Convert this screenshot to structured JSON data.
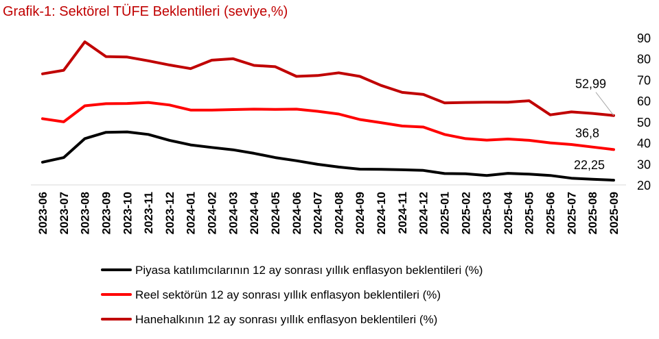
{
  "chart_data": {
    "type": "line",
    "title": "Grafik-1: Sektörel TÜFE Beklentileri (seviye,%)",
    "x": [
      "2023-06",
      "2023-07",
      "2023-08",
      "2023-09",
      "2023-10",
      "2023-11",
      "2023-12",
      "2024-01",
      "2024-02",
      "2024-03",
      "2024-04",
      "2024-05",
      "2024-06",
      "2024-07",
      "2024-08",
      "2024-09",
      "2024-10",
      "2024-11",
      "2024-12",
      "2025-01",
      "2025-02",
      "2025-03",
      "2025-04",
      "2025-05",
      "2025-06",
      "2025-07",
      "2025-08",
      "2025-09"
    ],
    "ylim": [
      20,
      90
    ],
    "yticks": [
      20,
      30,
      40,
      50,
      60,
      70,
      80,
      90
    ],
    "y_axis_side": "right",
    "legend_placement": "bottom",
    "series": [
      {
        "name": "Piyasa katılımcılarının 12 ay sonrası yıllık enflasyon beklentileri (%)",
        "color": "#000000",
        "values": [
          30.8,
          33.0,
          42.0,
          45.0,
          45.2,
          44.0,
          41.2,
          39.0,
          37.8,
          36.7,
          35.0,
          33.0,
          31.5,
          29.8,
          28.5,
          27.5,
          27.4,
          27.2,
          26.9,
          25.4,
          25.3,
          24.5,
          25.5,
          25.1,
          24.5,
          23.2,
          22.7,
          22.25
        ],
        "end_label": "22,25"
      },
      {
        "name": "Reel sektörün 12 ay sonrası yıllık enflasyon beklentileri (%)",
        "color": "#ff0000",
        "values": [
          51.5,
          50.0,
          57.6,
          58.6,
          58.7,
          59.2,
          58.0,
          55.6,
          55.6,
          55.8,
          56.0,
          55.9,
          56.0,
          55.0,
          53.7,
          51.1,
          49.6,
          48.0,
          47.5,
          44.0,
          42.0,
          41.3,
          41.8,
          41.2,
          40.0,
          39.2,
          38.0,
          36.8
        ],
        "end_label": "36,8"
      },
      {
        "name": "Hanehalkının 12 ay sonrası yıllık enflasyon beklentileri (%)",
        "color": "#c00000",
        "values": [
          72.8,
          74.5,
          88.0,
          81.0,
          80.8,
          79.0,
          77.0,
          75.3,
          79.3,
          80.0,
          76.8,
          76.2,
          71.6,
          72.0,
          73.3,
          71.6,
          67.3,
          64.0,
          63.0,
          59.0,
          59.2,
          59.3,
          59.3,
          60.0,
          53.3,
          54.7,
          54.0,
          52.99
        ],
        "end_label": "52,99"
      }
    ]
  }
}
